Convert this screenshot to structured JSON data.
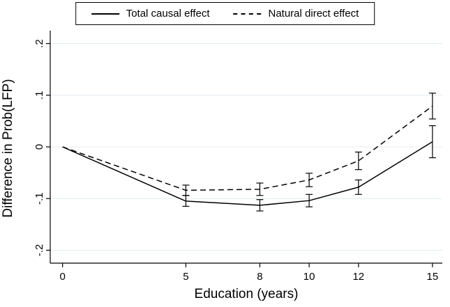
{
  "chart_data": {
    "type": "line",
    "title": "",
    "xlabel": "Education (years)",
    "ylabel": "Difference in Prob(LFP)",
    "x": [
      0,
      5,
      8,
      10,
      12,
      15
    ],
    "xlim": [
      -0.5,
      15.4
    ],
    "ylim": [
      -0.225,
      0.225
    ],
    "xticks": [
      0,
      5,
      8,
      10,
      12,
      15
    ],
    "xtick_labels": [
      "0",
      "5",
      "8",
      "10",
      "12",
      "15"
    ],
    "yticks": [
      -0.2,
      -0.1,
      0,
      0.1,
      0.2
    ],
    "ytick_labels": [
      "-.2",
      "-.1",
      "0",
      ".1",
      ".2"
    ],
    "grid": "horizontal",
    "legend": {
      "position": "top",
      "entries": [
        {
          "label": "Total causal effect",
          "style": "solid"
        },
        {
          "label": "Natural direct effect",
          "style": "dashed"
        }
      ]
    },
    "series": [
      {
        "name": "Total causal effect",
        "style": "solid",
        "values": [
          0,
          -0.105,
          -0.113,
          -0.104,
          -0.078,
          0.01
        ],
        "ci_low": [
          null,
          -0.115,
          -0.124,
          -0.116,
          -0.092,
          -0.021
        ],
        "ci_high": [
          null,
          -0.094,
          -0.102,
          -0.092,
          -0.064,
          0.041
        ]
      },
      {
        "name": "Natural direct effect",
        "style": "dashed",
        "values": [
          0,
          -0.084,
          -0.082,
          -0.064,
          -0.027,
          0.079
        ],
        "ci_low": [
          null,
          -0.094,
          -0.094,
          -0.077,
          -0.044,
          0.054
        ],
        "ci_high": [
          null,
          -0.074,
          -0.07,
          -0.051,
          -0.01,
          0.104
        ]
      }
    ],
    "colors": {
      "line": "#000000",
      "axis": "#000000",
      "grid": "#e4edef",
      "background": "#ffffff"
    }
  }
}
